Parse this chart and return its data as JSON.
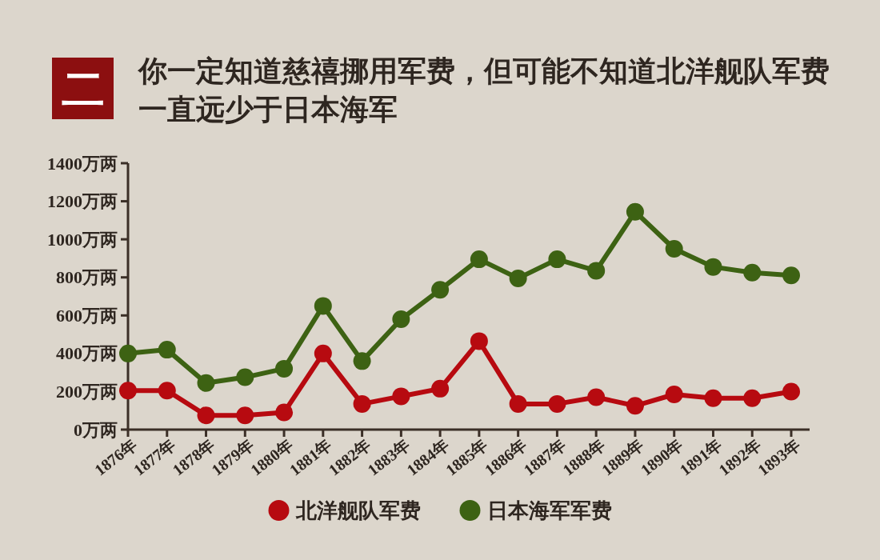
{
  "chart_data": {
    "type": "line",
    "title": "你一定知道慈禧挪用军费，但可能不知道北洋舰队军费一直远少于日本海军",
    "annotations": [
      "二"
    ],
    "categories": [
      "1876年",
      "1877年",
      "1878年",
      "1879年",
      "1880年",
      "1881年",
      "1882年",
      "1883年",
      "1884年",
      "1885年",
      "1886年",
      "1887年",
      "1888年",
      "1889年",
      "1890年",
      "1891年",
      "1892年",
      "1893年"
    ],
    "series": [
      {
        "name": "北洋舰队军费",
        "color": "#b70a10",
        "values": [
          205,
          205,
          75,
          75,
          90,
          400,
          135,
          175,
          215,
          465,
          135,
          135,
          170,
          125,
          185,
          165,
          165,
          200
        ]
      },
      {
        "name": "日本海军军费",
        "color": "#3d6213",
        "values": [
          400,
          420,
          245,
          275,
          320,
          650,
          360,
          580,
          735,
          895,
          795,
          895,
          835,
          1145,
          950,
          855,
          825,
          810
        ]
      }
    ],
    "ylim": [
      0,
      1400
    ],
    "yticks": [
      {
        "value": 0,
        "label": "0万两"
      },
      {
        "value": 200,
        "label": "200万两"
      },
      {
        "value": 400,
        "label": "400万两"
      },
      {
        "value": 600,
        "label": "600万两"
      },
      {
        "value": 800,
        "label": "800万两"
      },
      {
        "value": 1000,
        "label": "1000万两"
      },
      {
        "value": 1200,
        "label": "1200万两"
      },
      {
        "value": 1400,
        "label": "1400万两"
      }
    ],
    "marker": "circle",
    "legend": "bottom"
  }
}
